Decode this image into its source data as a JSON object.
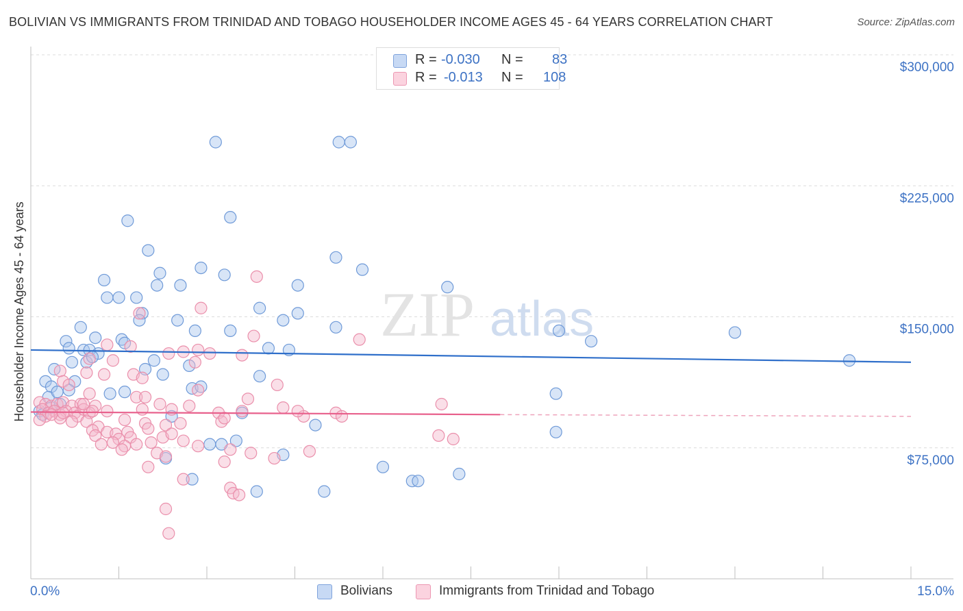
{
  "title": "BOLIVIAN VS IMMIGRANTS FROM TRINIDAD AND TOBAGO HOUSEHOLDER INCOME AGES 45 - 64 YEARS CORRELATION CHART",
  "source": "Source: ZipAtlas.com",
  "watermark": {
    "zip": "ZIP",
    "atlas": "atlas"
  },
  "legend": {
    "r_label": "R =",
    "n_label": "N =",
    "rows": [
      {
        "r_value": "-0.030",
        "n_value": "83",
        "color": "#a9c6ee"
      },
      {
        "r_value": "-0.013",
        "n_value": "108",
        "color": "#f5b8cb"
      }
    ]
  },
  "bottom_legend": [
    {
      "label": "Bolivians",
      "color": "#a9c6ee"
    },
    {
      "label": "Immigrants from Trinidad and Tobago",
      "color": "#f5b8cb"
    }
  ],
  "chart_data": {
    "type": "scatter",
    "title": "BOLIVIAN VS IMMIGRANTS FROM TRINIDAD AND TOBAGO HOUSEHOLDER INCOME AGES 45 - 64 YEARS CORRELATION CHART",
    "xlabel": "",
    "ylabel": "Householder Income Ages 45 - 64 years",
    "xlim": [
      0,
      15
    ],
    "ylim": [
      0,
      300000
    ],
    "x_tick_labels": [
      "0.0%",
      "15.0%"
    ],
    "y_ticks": [
      75000,
      150000,
      225000,
      300000
    ],
    "y_tick_labels": [
      "$75,000",
      "$150,000",
      "$225,000",
      "$300,000"
    ],
    "grid": "horizontal dashed",
    "legend_position": "top-center",
    "series": [
      {
        "name": "Bolivians",
        "color": "#3d72c4",
        "fill": "#a9c6ee",
        "trend": {
          "x": [
            0,
            15
          ],
          "y": [
            131000,
            124000
          ]
        },
        "points": [
          [
            3.15,
            250000
          ],
          [
            5.25,
            250000
          ],
          [
            5.45,
            250000
          ],
          [
            1.65,
            205000
          ],
          [
            3.4,
            207000
          ],
          [
            2.0,
            188000
          ],
          [
            5.2,
            184000
          ],
          [
            2.2,
            175000
          ],
          [
            2.9,
            178000
          ],
          [
            3.3,
            174000
          ],
          [
            5.65,
            177000
          ],
          [
            1.25,
            171000
          ],
          [
            2.15,
            168000
          ],
          [
            2.55,
            168000
          ],
          [
            4.55,
            168000
          ],
          [
            7.1,
            167000
          ],
          [
            1.3,
            161000
          ],
          [
            1.5,
            161000
          ],
          [
            1.8,
            161000
          ],
          [
            3.9,
            155000
          ],
          [
            4.55,
            152000
          ],
          [
            1.9,
            152000
          ],
          [
            1.85,
            148000
          ],
          [
            2.5,
            148000
          ],
          [
            4.3,
            148000
          ],
          [
            0.85,
            144000
          ],
          [
            2.8,
            142000
          ],
          [
            3.4,
            142000
          ],
          [
            5.2,
            144000
          ],
          [
            9.0,
            142000
          ],
          [
            12.0,
            141000
          ],
          [
            0.6,
            136000
          ],
          [
            1.1,
            138000
          ],
          [
            1.55,
            137000
          ],
          [
            1.6,
            135000
          ],
          [
            9.55,
            136000
          ],
          [
            0.65,
            132000
          ],
          [
            0.9,
            131000
          ],
          [
            1.0,
            131000
          ],
          [
            1.15,
            129000
          ],
          [
            4.05,
            132000
          ],
          [
            4.4,
            131000
          ],
          [
            0.7,
            124000
          ],
          [
            0.95,
            124000
          ],
          [
            1.05,
            127000
          ],
          [
            2.1,
            125000
          ],
          [
            2.7,
            122000
          ],
          [
            13.95,
            125000
          ],
          [
            0.4,
            120000
          ],
          [
            1.95,
            120000
          ],
          [
            0.25,
            113000
          ],
          [
            0.35,
            110000
          ],
          [
            0.75,
            113000
          ],
          [
            2.25,
            117000
          ],
          [
            3.9,
            116000
          ],
          [
            2.75,
            109000
          ],
          [
            2.9,
            110000
          ],
          [
            0.3,
            104000
          ],
          [
            0.45,
            107000
          ],
          [
            0.65,
            108000
          ],
          [
            1.35,
            106000
          ],
          [
            1.6,
            107000
          ],
          [
            8.95,
            106000
          ],
          [
            0.15,
            96000
          ],
          [
            0.2,
            94000
          ],
          [
            0.35,
            98000
          ],
          [
            0.5,
            100000
          ],
          [
            2.4,
            93000
          ],
          [
            3.6,
            95000
          ],
          [
            4.85,
            88000
          ],
          [
            8.95,
            84000
          ],
          [
            3.05,
            77000
          ],
          [
            3.25,
            77000
          ],
          [
            3.5,
            79000
          ],
          [
            2.3,
            69000
          ],
          [
            4.3,
            71000
          ],
          [
            6.0,
            64000
          ],
          [
            6.5,
            56000
          ],
          [
            6.6,
            56000
          ],
          [
            7.3,
            60000
          ],
          [
            2.75,
            57000
          ],
          [
            3.85,
            50000
          ],
          [
            5.0,
            50000
          ]
        ]
      },
      {
        "name": "Immigrants from Trinidad and Tobago",
        "color": "#e8608c",
        "fill": "#f5b8cb",
        "trend": {
          "x": [
            0,
            8.0
          ],
          "y": [
            95500,
            94000
          ],
          "dashed_to": [
            15,
            93000
          ]
        },
        "points": [
          [
            3.85,
            173000
          ],
          [
            2.9,
            155000
          ],
          [
            1.85,
            152000
          ],
          [
            3.8,
            139000
          ],
          [
            5.6,
            137000
          ],
          [
            1.3,
            134000
          ],
          [
            1.7,
            133000
          ],
          [
            2.35,
            129000
          ],
          [
            2.6,
            130000
          ],
          [
            2.85,
            131000
          ],
          [
            3.05,
            129000
          ],
          [
            3.6,
            128000
          ],
          [
            1.0,
            126000
          ],
          [
            1.4,
            125000
          ],
          [
            2.8,
            124000
          ],
          [
            0.5,
            119000
          ],
          [
            0.95,
            118000
          ],
          [
            1.25,
            117000
          ],
          [
            1.75,
            117000
          ],
          [
            1.9,
            115000
          ],
          [
            0.55,
            113000
          ],
          [
            0.65,
            111000
          ],
          [
            2.85,
            108000
          ],
          [
            4.2,
            111000
          ],
          [
            1.0,
            106000
          ],
          [
            1.8,
            104000
          ],
          [
            1.95,
            104000
          ],
          [
            3.7,
            103000
          ],
          [
            0.15,
            101000
          ],
          [
            0.25,
            100000
          ],
          [
            0.35,
            99000
          ],
          [
            0.45,
            100000
          ],
          [
            0.55,
            101000
          ],
          [
            0.7,
            99000
          ],
          [
            0.85,
            100000
          ],
          [
            1.1,
            99000
          ],
          [
            2.4,
            97000
          ],
          [
            2.7,
            99000
          ],
          [
            4.3,
            98000
          ],
          [
            7.0,
            100000
          ],
          [
            0.2,
            97000
          ],
          [
            0.3,
            95000
          ],
          [
            0.4,
            96000
          ],
          [
            0.5,
            94000
          ],
          [
            0.6,
            96000
          ],
          [
            0.75,
            95000
          ],
          [
            0.8,
            93000
          ],
          [
            0.9,
            97000
          ],
          [
            1.0,
            95000
          ],
          [
            1.3,
            96000
          ],
          [
            1.9,
            97000
          ],
          [
            3.2,
            95000
          ],
          [
            3.6,
            96000
          ],
          [
            5.2,
            95000
          ],
          [
            0.25,
            93000
          ],
          [
            0.5,
            92000
          ],
          [
            0.7,
            90000
          ],
          [
            0.95,
            90000
          ],
          [
            1.6,
            91000
          ],
          [
            3.25,
            90000
          ],
          [
            3.3,
            92000
          ],
          [
            4.65,
            93000
          ],
          [
            5.3,
            93000
          ],
          [
            1.15,
            87000
          ],
          [
            1.95,
            89000
          ],
          [
            2.3,
            88000
          ],
          [
            2.55,
            89000
          ],
          [
            1.05,
            85000
          ],
          [
            1.3,
            84000
          ],
          [
            1.45,
            83000
          ],
          [
            1.65,
            84000
          ],
          [
            2.0,
            86000
          ],
          [
            1.1,
            82000
          ],
          [
            1.5,
            80000
          ],
          [
            1.7,
            81000
          ],
          [
            2.25,
            81000
          ],
          [
            2.4,
            83000
          ],
          [
            1.4,
            78000
          ],
          [
            1.6,
            76000
          ],
          [
            1.8,
            77000
          ],
          [
            2.05,
            78000
          ],
          [
            2.6,
            79000
          ],
          [
            2.85,
            76000
          ],
          [
            6.95,
            82000
          ],
          [
            7.2,
            80000
          ],
          [
            1.2,
            77000
          ],
          [
            1.55,
            74000
          ],
          [
            2.15,
            72000
          ],
          [
            2.3,
            70000
          ],
          [
            3.4,
            74000
          ],
          [
            3.75,
            72000
          ],
          [
            4.15,
            69000
          ],
          [
            4.75,
            73000
          ],
          [
            2.0,
            64000
          ],
          [
            3.3,
            67000
          ],
          [
            2.6,
            57000
          ],
          [
            3.4,
            52000
          ],
          [
            3.45,
            49000
          ],
          [
            3.55,
            48000
          ],
          [
            2.3,
            40000
          ],
          [
            2.35,
            26000
          ],
          [
            0.15,
            91000
          ],
          [
            0.35,
            94000
          ],
          [
            4.55,
            96000
          ],
          [
            1.05,
            96000
          ],
          [
            0.55,
            95000
          ],
          [
            2.2,
            100000
          ],
          [
            0.9,
            100000
          ]
        ]
      }
    ]
  }
}
